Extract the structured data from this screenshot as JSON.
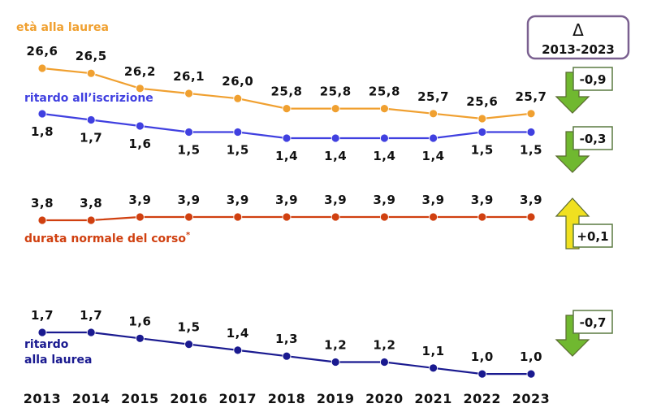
{
  "chart_data": {
    "type": "line",
    "x": [
      "2013",
      "2014",
      "2015",
      "2016",
      "2017",
      "2018",
      "2019",
      "2020",
      "2021",
      "2022",
      "2023"
    ],
    "series": [
      {
        "id": "eta",
        "name": "età alla laurea",
        "color": "#f0a030",
        "values": [
          26.6,
          26.5,
          26.2,
          26.1,
          26.0,
          25.8,
          25.8,
          25.8,
          25.7,
          25.6,
          25.7
        ],
        "labels": [
          "26,6",
          "26,5",
          "26,2",
          "26,1",
          "26,0",
          "25,8",
          "25,8",
          "25,8",
          "25,7",
          "25,6",
          "25,7"
        ],
        "delta": "-0,9",
        "delta_dir": "down"
      },
      {
        "id": "ritardo_iscrizione",
        "name": "ritardo all’iscrizione",
        "color": "#4040e0",
        "values": [
          1.8,
          1.7,
          1.6,
          1.5,
          1.5,
          1.4,
          1.4,
          1.4,
          1.4,
          1.5,
          1.5
        ],
        "labels": [
          "1,8",
          "1,7",
          "1,6",
          "1,5",
          "1,5",
          "1,4",
          "1,4",
          "1,4",
          "1,4",
          "1,5",
          "1,5"
        ],
        "delta": "-0,3",
        "delta_dir": "down"
      },
      {
        "id": "durata",
        "name": "durata normale del corso",
        "name_mark": "*",
        "color": "#d04010",
        "values": [
          3.8,
          3.8,
          3.9,
          3.9,
          3.9,
          3.9,
          3.9,
          3.9,
          3.9,
          3.9,
          3.9
        ],
        "labels": [
          "3,8",
          "3,8",
          "3,9",
          "3,9",
          "3,9",
          "3,9",
          "3,9",
          "3,9",
          "3,9",
          "3,9",
          "3,9"
        ],
        "delta": "+0,1",
        "delta_dir": "up"
      },
      {
        "id": "ritardo_laurea",
        "name_lines": [
          "ritardo",
          "alla laurea"
        ],
        "color": "#1a1a90",
        "values": [
          1.7,
          1.7,
          1.6,
          1.5,
          1.4,
          1.3,
          1.2,
          1.2,
          1.1,
          1.0,
          1.0
        ],
        "labels": [
          "1,7",
          "1,7",
          "1,6",
          "1,5",
          "1,4",
          "1,3",
          "1,2",
          "1,2",
          "1,1",
          "1,0",
          "1,0"
        ],
        "delta": "-0,7",
        "delta_dir": "down"
      }
    ],
    "delta_header": {
      "symbol": "Δ",
      "range": "2013-2023"
    },
    "arrow_colors": {
      "down": "#70b830",
      "up": "#f0e020"
    }
  }
}
